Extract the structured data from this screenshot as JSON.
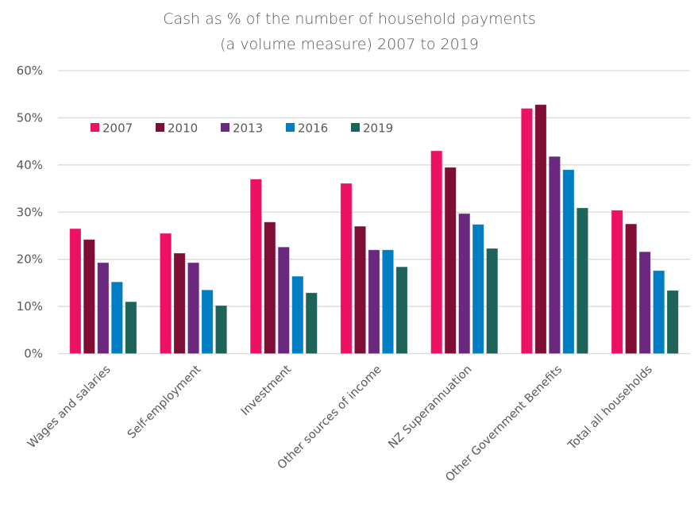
{
  "chart_data": {
    "type": "bar",
    "title": [
      "Cash as % of the number of household payments",
      "(a volume measure) 2007 to 2019"
    ],
    "xlabel": "",
    "ylabel": "",
    "ylim": [
      0,
      60
    ],
    "yticks": [
      0,
      10,
      20,
      30,
      40,
      50,
      60
    ],
    "ytick_labels": [
      "0%",
      "10%",
      "20%",
      "30%",
      "40%",
      "50%",
      "60%"
    ],
    "grid": true,
    "legend_position": "top-left",
    "categories": [
      "Wages and salaries",
      "Self-employment",
      "Investment",
      "Other sources of income",
      "NZ Superannuation",
      "Other Government Benefits",
      "Total all households"
    ],
    "series": [
      {
        "name": "2007",
        "color": "#ED1164",
        "values": [
          26.5,
          25.5,
          37.0,
          36.1,
          43.0,
          52.0,
          30.4
        ]
      },
      {
        "name": "2010",
        "color": "#7F0E36",
        "values": [
          24.2,
          21.3,
          27.9,
          27.0,
          39.5,
          52.8,
          27.5
        ]
      },
      {
        "name": "2013",
        "color": "#6A297F",
        "values": [
          19.3,
          19.3,
          22.6,
          22.0,
          29.7,
          41.8,
          21.6
        ]
      },
      {
        "name": "2016",
        "color": "#007DC3",
        "values": [
          15.2,
          13.5,
          16.4,
          22.0,
          27.4,
          39.0,
          17.6
        ]
      },
      {
        "name": "2019",
        "color": "#1D6359",
        "values": [
          11.0,
          10.2,
          12.9,
          18.4,
          22.3,
          30.9,
          13.4
        ]
      }
    ]
  }
}
